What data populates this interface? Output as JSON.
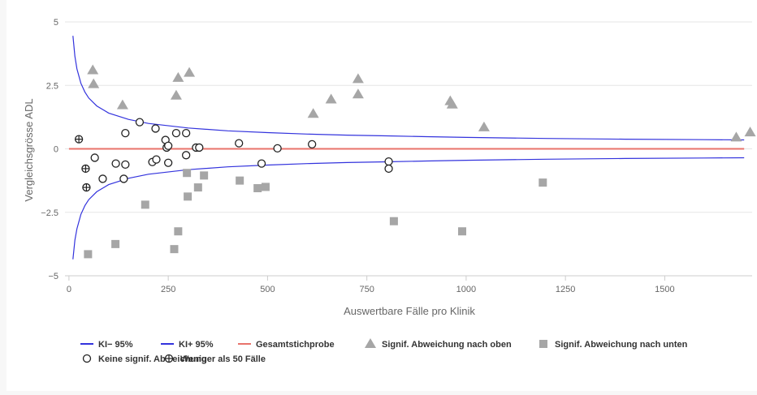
{
  "chart_data": {
    "type": "scatter",
    "xlabel": "Auswertbare Fälle pro Klinik",
    "ylabel": "Vergleichsgrösse ADL",
    "xlim": [
      -10,
      1720
    ],
    "ylim": [
      -5,
      5
    ],
    "x_ticks": [
      0,
      250,
      500,
      750,
      1000,
      1250,
      1500
    ],
    "y_ticks": [
      5,
      2.5,
      0,
      -2.5,
      -5
    ],
    "y_tick_labels": [
      "5",
      "2.5",
      "0",
      "−2.5",
      "−5"
    ],
    "grid": "horizontal",
    "legend_position": "bottom",
    "colors": {
      "ci_lines": "#3333dd",
      "overall": "#e8736b",
      "signif": "#a6a6a6",
      "marker_outline": "#222222"
    },
    "legend": [
      {
        "label": "KI− 95%",
        "symbol": "line",
        "color": "#3333dd"
      },
      {
        "label": "KI+ 95%",
        "symbol": "line",
        "color": "#3333dd"
      },
      {
        "label": "Gesamtstichprobe",
        "symbol": "line",
        "color": "#e8736b"
      },
      {
        "label": "Signif. Abweichung nach oben",
        "symbol": "triangle",
        "color": "#a6a6a6"
      },
      {
        "label": "Signif. Abweichung nach unten",
        "symbol": "square",
        "color": "#a6a6a6"
      },
      {
        "label": "Keine signif. Abweichung",
        "symbol": "circle",
        "color": "#222222"
      },
      {
        "label": "Weniger als 50 Fälle",
        "symbol": "crosscircle",
        "color": "#222222"
      }
    ],
    "series": [
      {
        "name": "KI− 95%",
        "kind": "line",
        "points": [
          [
            10,
            -4.35
          ],
          [
            15,
            -3.6
          ],
          [
            20,
            -3.15
          ],
          [
            30,
            -2.58
          ],
          [
            40,
            -2.24
          ],
          [
            50,
            -2.0
          ],
          [
            70,
            -1.69
          ],
          [
            100,
            -1.41
          ],
          [
            150,
            -1.16
          ],
          [
            200,
            -1.0
          ],
          [
            300,
            -0.82
          ],
          [
            400,
            -0.71
          ],
          [
            500,
            -0.64
          ],
          [
            600,
            -0.58
          ],
          [
            700,
            -0.54
          ],
          [
            800,
            -0.51
          ],
          [
            900,
            -0.48
          ],
          [
            1000,
            -0.45
          ],
          [
            1200,
            -0.41
          ],
          [
            1400,
            -0.38
          ],
          [
            1600,
            -0.36
          ],
          [
            1700,
            -0.35
          ]
        ]
      },
      {
        "name": "KI+ 95%",
        "kind": "line",
        "points": [
          [
            10,
            4.45
          ],
          [
            15,
            3.65
          ],
          [
            20,
            3.15
          ],
          [
            30,
            2.58
          ],
          [
            40,
            2.24
          ],
          [
            50,
            2.0
          ],
          [
            70,
            1.69
          ],
          [
            100,
            1.41
          ],
          [
            150,
            1.16
          ],
          [
            200,
            1.0
          ],
          [
            300,
            0.82
          ],
          [
            400,
            0.71
          ],
          [
            500,
            0.64
          ],
          [
            600,
            0.58
          ],
          [
            700,
            0.54
          ],
          [
            800,
            0.51
          ],
          [
            900,
            0.48
          ],
          [
            1000,
            0.45
          ],
          [
            1200,
            0.41
          ],
          [
            1400,
            0.38
          ],
          [
            1600,
            0.36
          ],
          [
            1700,
            0.35
          ]
        ]
      },
      {
        "name": "Gesamtstichprobe",
        "kind": "line",
        "points": [
          [
            0,
            0
          ],
          [
            1700,
            0
          ]
        ]
      },
      {
        "name": "Signif. Abweichung nach oben",
        "kind": "triangle",
        "points": [
          [
            60,
            3.1
          ],
          [
            62,
            2.55
          ],
          [
            135,
            1.72
          ],
          [
            270,
            2.1
          ],
          [
            275,
            2.8
          ],
          [
            303,
            3.0
          ],
          [
            615,
            1.38
          ],
          [
            660,
            1.95
          ],
          [
            728,
            2.75
          ],
          [
            728,
            2.15
          ],
          [
            960,
            1.88
          ],
          [
            965,
            1.75
          ],
          [
            1045,
            0.85
          ],
          [
            1680,
            0.45
          ],
          [
            1715,
            0.65
          ]
        ]
      },
      {
        "name": "Signif. Abweichung nach unten",
        "kind": "square",
        "points": [
          [
            48,
            -4.15
          ],
          [
            117,
            -3.75
          ],
          [
            192,
            -2.2
          ],
          [
            265,
            -3.95
          ],
          [
            275,
            -3.25
          ],
          [
            297,
            -0.95
          ],
          [
            299,
            -1.88
          ],
          [
            325,
            -1.52
          ],
          [
            340,
            -1.05
          ],
          [
            430,
            -1.25
          ],
          [
            475,
            -1.55
          ],
          [
            495,
            -1.5
          ],
          [
            818,
            -2.85
          ],
          [
            990,
            -3.25
          ],
          [
            1193,
            -1.33
          ]
        ]
      },
      {
        "name": "Keine signif. Abweichung",
        "kind": "circle",
        "points": [
          [
            65,
            -0.35
          ],
          [
            85,
            -1.18
          ],
          [
            118,
            -0.58
          ],
          [
            138,
            -1.18
          ],
          [
            142,
            -0.62
          ],
          [
            142,
            0.62
          ],
          [
            178,
            1.05
          ],
          [
            210,
            -0.52
          ],
          [
            218,
            0.8
          ],
          [
            220,
            -0.42
          ],
          [
            243,
            0.35
          ],
          [
            246,
            0.05
          ],
          [
            250,
            0.12
          ],
          [
            250,
            -0.55
          ],
          [
            270,
            0.62
          ],
          [
            295,
            0.62
          ],
          [
            295,
            -0.25
          ],
          [
            320,
            0.05
          ],
          [
            328,
            0.05
          ],
          [
            428,
            0.22
          ],
          [
            485,
            -0.58
          ],
          [
            525,
            0.02
          ],
          [
            612,
            0.18
          ],
          [
            805,
            -0.5
          ],
          [
            805,
            -0.78
          ]
        ]
      },
      {
        "name": "Weniger als 50 Fälle",
        "kind": "crosscircle",
        "points": [
          [
            25,
            0.38
          ],
          [
            42,
            -0.78
          ],
          [
            44,
            -1.52
          ]
        ]
      }
    ]
  }
}
